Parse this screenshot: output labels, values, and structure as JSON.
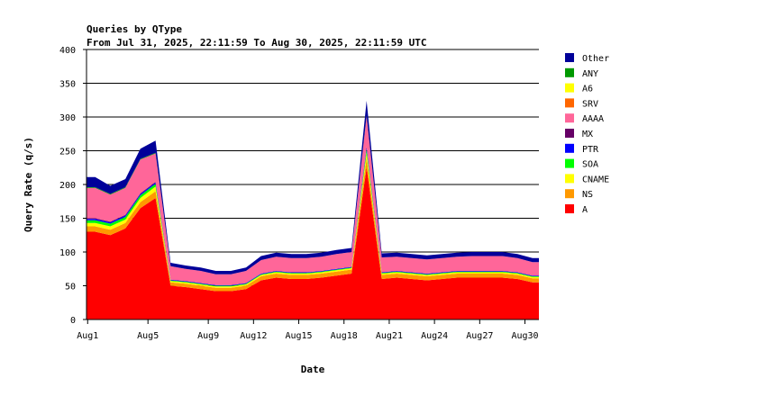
{
  "chart_data": {
    "type": "area",
    "stacked": true,
    "title": "Queries by QType",
    "subtitle": "From Jul 31, 2025, 22:11:59 To Aug 30, 2025, 22:11:59 UTC",
    "xlabel": "Date",
    "ylabel": "Query Rate (q/s)",
    "ylim": [
      0,
      400
    ],
    "yticks": [
      0,
      50,
      100,
      150,
      200,
      250,
      300,
      350,
      400
    ],
    "xlim": [
      "2025-07-31T22:11:59",
      "2025-08-30T22:11:59"
    ],
    "xticks": [
      {
        "label": "Aug1",
        "date": "2025-08-01"
      },
      {
        "label": "Aug5",
        "date": "2025-08-05"
      },
      {
        "label": "Aug9",
        "date": "2025-08-09"
      },
      {
        "label": "Aug12",
        "date": "2025-08-12"
      },
      {
        "label": "Aug15",
        "date": "2025-08-15"
      },
      {
        "label": "Aug18",
        "date": "2025-08-18"
      },
      {
        "label": "Aug21",
        "date": "2025-08-21"
      },
      {
        "label": "Aug24",
        "date": "2025-08-24"
      },
      {
        "label": "Aug27",
        "date": "2025-08-27"
      },
      {
        "label": "Aug30",
        "date": "2025-08-30"
      }
    ],
    "grid": "horizontal",
    "legend_position": "right",
    "legend": [
      {
        "name": "Other",
        "color": "#000099"
      },
      {
        "name": "ANY",
        "color": "#009900"
      },
      {
        "name": "A6",
        "color": "#ffff00"
      },
      {
        "name": "SRV",
        "color": "#ff6600"
      },
      {
        "name": "AAAA",
        "color": "#ff6699"
      },
      {
        "name": "MX",
        "color": "#660066"
      },
      {
        "name": "PTR",
        "color": "#0000ff"
      },
      {
        "name": "SOA",
        "color": "#00ff00"
      },
      {
        "name": "CNAME",
        "color": "#ffff00"
      },
      {
        "name": "NS",
        "color": "#ff9900"
      },
      {
        "name": "A",
        "color": "#ff0000"
      }
    ],
    "x": [
      "2025-08-01",
      "2025-08-02",
      "2025-08-03",
      "2025-08-04",
      "2025-08-05",
      "2025-08-06",
      "2025-08-07",
      "2025-08-08",
      "2025-08-09",
      "2025-08-10",
      "2025-08-11",
      "2025-08-12",
      "2025-08-13",
      "2025-08-14",
      "2025-08-15",
      "2025-08-16",
      "2025-08-17",
      "2025-08-18",
      "2025-08-19",
      "2025-08-20",
      "2025-08-21",
      "2025-08-22",
      "2025-08-23",
      "2025-08-24",
      "2025-08-25",
      "2025-08-26",
      "2025-08-27",
      "2025-08-28",
      "2025-08-29",
      "2025-08-30"
    ],
    "series": [
      {
        "name": "A",
        "values": [
          130,
          125,
          135,
          165,
          180,
          50,
          48,
          45,
          42,
          42,
          45,
          58,
          62,
          60,
          60,
          62,
          65,
          68,
          225,
          60,
          62,
          60,
          58,
          60,
          62,
          62,
          62,
          62,
          60,
          55
        ]
      },
      {
        "name": "NS",
        "values": [
          8,
          8,
          8,
          9,
          10,
          5,
          5,
          5,
          5,
          5,
          5,
          6,
          6,
          6,
          6,
          6,
          6,
          6,
          14,
          6,
          6,
          6,
          6,
          6,
          6,
          6,
          6,
          6,
          6,
          6
        ]
      },
      {
        "name": "CNAME",
        "values": [
          5,
          5,
          5,
          6,
          7,
          2,
          2,
          2,
          2,
          2,
          2,
          2,
          2,
          2,
          2,
          2,
          2,
          2,
          8,
          2,
          2,
          2,
          2,
          2,
          2,
          2,
          2,
          2,
          2,
          2
        ]
      },
      {
        "name": "SOA",
        "values": [
          4,
          4,
          4,
          4,
          4,
          1,
          1,
          1,
          1,
          1,
          1,
          1,
          1,
          1,
          1,
          1,
          1,
          1,
          5,
          1,
          1,
          1,
          1,
          1,
          1,
          1,
          1,
          1,
          1,
          1
        ]
      },
      {
        "name": "PTR",
        "values": [
          2,
          2,
          2,
          2,
          2,
          1,
          1,
          1,
          1,
          1,
          1,
          1,
          1,
          1,
          1,
          1,
          1,
          1,
          3,
          1,
          1,
          1,
          1,
          1,
          1,
          1,
          1,
          1,
          1,
          1
        ]
      },
      {
        "name": "MX",
        "values": [
          1,
          1,
          1,
          1,
          1,
          0,
          0,
          0,
          0,
          0,
          0,
          0,
          0,
          0,
          0,
          0,
          0,
          0,
          1,
          0,
          0,
          0,
          0,
          0,
          0,
          0,
          0,
          0,
          0,
          0
        ]
      },
      {
        "name": "AAAA",
        "values": [
          45,
          40,
          40,
          50,
          42,
          20,
          18,
          18,
          16,
          16,
          18,
          20,
          21,
          21,
          21,
          21,
          22,
          22,
          45,
          22,
          21,
          21,
          21,
          21,
          21,
          22,
          22,
          22,
          21,
          20
        ]
      },
      {
        "name": "SRV",
        "values": [
          0,
          0,
          0,
          0,
          0,
          0,
          0,
          0,
          0,
          0,
          0,
          0,
          0,
          0,
          0,
          0,
          0,
          0,
          0,
          0,
          0,
          0,
          0,
          0,
          0,
          0,
          0,
          0,
          0,
          0
        ]
      },
      {
        "name": "A6",
        "values": [
          0,
          0,
          0,
          0,
          0,
          0,
          0,
          0,
          0,
          0,
          0,
          0,
          0,
          0,
          0,
          0,
          0,
          0,
          0,
          0,
          0,
          0,
          0,
          0,
          0,
          0,
          0,
          0,
          0,
          0
        ]
      },
      {
        "name": "ANY",
        "values": [
          1,
          1,
          1,
          1,
          1,
          0,
          0,
          0,
          0,
          0,
          0,
          0,
          0,
          0,
          0,
          0,
          0,
          0,
          1,
          0,
          0,
          0,
          0,
          0,
          0,
          0,
          0,
          0,
          0,
          0
        ]
      },
      {
        "name": "Other",
        "values": [
          15,
          12,
          12,
          15,
          18,
          5,
          5,
          5,
          5,
          5,
          5,
          6,
          6,
          6,
          6,
          6,
          6,
          6,
          22,
          6,
          6,
          6,
          6,
          6,
          6,
          6,
          6,
          6,
          6,
          6
        ]
      }
    ]
  }
}
